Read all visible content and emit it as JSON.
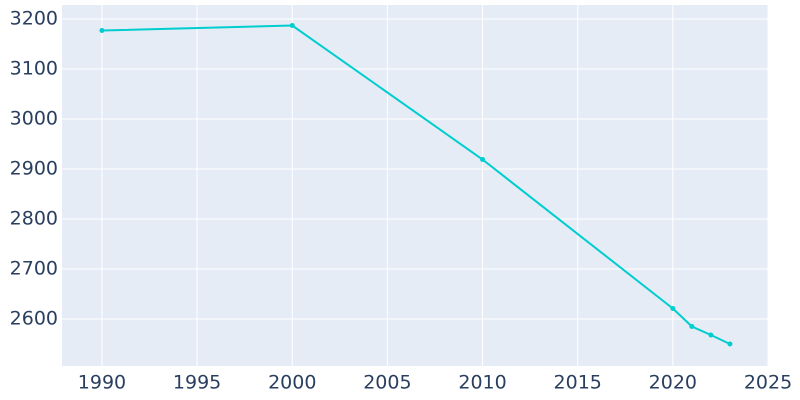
{
  "chart_data": {
    "type": "line",
    "x": [
      1990,
      2000,
      2010,
      2020,
      2021,
      2022,
      2023
    ],
    "series": [
      {
        "color": "#00cdd0",
        "values": [
          3177,
          3187,
          2919,
          2621,
          2585,
          2568,
          2550
        ]
      }
    ],
    "xlim": [
      1987.9,
      2025
    ],
    "xticks": [
      1990,
      1995,
      2000,
      2005,
      2010,
      2015,
      2020,
      2025
    ],
    "ylim": [
      2506,
      3228
    ],
    "yticks": [
      2600,
      2700,
      2800,
      2900,
      3000,
      3100,
      3200
    ],
    "grid": true
  }
}
